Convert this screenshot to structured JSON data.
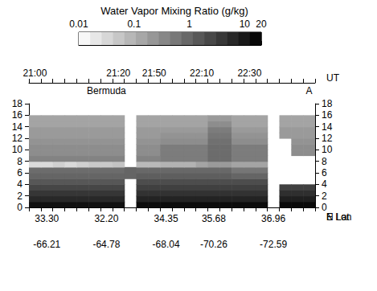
{
  "chart_data": {
    "type": "heatmap",
    "title": "Water Vapor Mixing Ratio (g/kg)",
    "top_axis": {
      "name": "UT",
      "labels": [
        "21:00",
        null,
        null,
        null,
        null,
        null,
        null,
        "21:20",
        null,
        null,
        "21:50",
        null,
        null,
        null,
        "22:10",
        null,
        null,
        null,
        "22:30",
        null,
        null,
        null,
        null,
        null
      ]
    },
    "annotations": {
      "labels": [
        null,
        null,
        null,
        null,
        null,
        null,
        "Bermuda",
        null,
        null,
        null,
        null,
        null,
        null,
        null,
        null,
        null,
        null,
        null,
        null,
        null,
        null,
        null,
        null,
        "A"
      ]
    },
    "bottom_axes": [
      {
        "name": "N Lat",
        "labels": [
          null,
          "33.30",
          null,
          null,
          null,
          null,
          "32.20",
          null,
          null,
          null,
          null,
          "34.35",
          null,
          null,
          null,
          "35.68",
          null,
          null,
          null,
          null,
          "36.96",
          null,
          null,
          null
        ]
      },
      {
        "name": "E Lon",
        "labels": [
          null,
          "-66.21",
          null,
          null,
          null,
          null,
          "-64.78",
          null,
          null,
          null,
          null,
          "-68.04",
          null,
          null,
          null,
          "-70.26",
          null,
          null,
          null,
          null,
          "-72.59",
          null,
          null,
          null
        ]
      }
    ],
    "ylim": [
      0,
      18
    ],
    "yticks": [
      0,
      2,
      4,
      6,
      8,
      10,
      12,
      14,
      16,
      18
    ],
    "y_bins": [
      0,
      1,
      2,
      3,
      4,
      5,
      6,
      7,
      8,
      9,
      10,
      11,
      12,
      13,
      14,
      15,
      16
    ],
    "cells": [
      [
        12,
        12,
        12,
        12,
        12,
        12,
        12,
        12,
        null,
        14,
        14,
        14,
        14,
        14,
        14,
        14,
        14,
        14,
        14,
        14,
        null,
        15,
        15,
        15
      ],
      [
        6,
        6,
        6,
        6,
        6,
        6,
        6,
        6,
        null,
        7,
        7,
        7,
        7,
        7,
        7,
        7,
        7,
        7,
        7,
        7,
        null,
        8,
        8,
        8
      ],
      [
        4,
        4,
        4,
        4,
        4,
        4,
        4,
        4,
        null,
        4.5,
        4.5,
        4.5,
        4.5,
        4.5,
        4.5,
        4.5,
        4.5,
        4.5,
        4.5,
        4.5,
        null,
        5,
        5,
        5
      ],
      [
        2.5,
        2.5,
        2.5,
        2.5,
        2.5,
        2.5,
        2.5,
        2.5,
        null,
        3,
        3,
        3,
        3,
        3,
        3,
        3,
        3,
        3,
        3,
        3,
        null,
        3,
        3,
        3
      ],
      [
        1.5,
        1.5,
        1.5,
        1.5,
        1.5,
        1.5,
        1.5,
        1.5,
        null,
        2,
        2,
        2,
        2,
        2,
        2,
        2,
        2,
        2,
        2,
        2,
        null,
        null,
        null,
        null
      ],
      [
        1,
        1,
        1,
        1,
        1,
        1,
        1,
        1,
        1,
        1.2,
        1.2,
        1.2,
        1.2,
        1.2,
        1.2,
        1.2,
        1.2,
        1,
        1,
        1,
        null,
        null,
        null,
        null
      ],
      [
        0.8,
        0.8,
        0.8,
        0.8,
        0.8,
        0.8,
        0.8,
        0.8,
        1,
        0.9,
        0.9,
        0.9,
        0.9,
        0.9,
        0.9,
        0.9,
        0.9,
        0.6,
        0.6,
        0.6,
        null,
        null,
        null,
        null
      ],
      [
        0.03,
        0.03,
        0.04,
        0.03,
        0.04,
        0.05,
        0.05,
        0.06,
        null,
        0.08,
        0.08,
        0.1,
        0.1,
        0.1,
        0.15,
        0.2,
        0.2,
        0.15,
        0.15,
        0.15,
        null,
        null,
        null,
        null
      ],
      [
        0.4,
        0.4,
        0.4,
        0.4,
        0.4,
        0.4,
        0.4,
        0.4,
        null,
        0.4,
        0.4,
        0.5,
        0.5,
        0.5,
        0.5,
        0.8,
        0.8,
        0.5,
        0.5,
        0.5,
        null,
        null,
        null,
        null
      ],
      [
        0.3,
        0.3,
        0.3,
        0.3,
        0.3,
        0.3,
        0.3,
        0.3,
        null,
        0.3,
        0.3,
        0.5,
        0.5,
        0.5,
        0.5,
        0.8,
        0.8,
        0.5,
        0.5,
        0.5,
        null,
        null,
        0.3,
        0.3
      ],
      [
        0.3,
        0.3,
        0.3,
        0.3,
        0.3,
        0.3,
        0.3,
        0.3,
        null,
        0.3,
        0.3,
        0.5,
        0.5,
        0.5,
        0.5,
        0.8,
        0.8,
        0.5,
        0.5,
        0.5,
        null,
        null,
        0.3,
        0.3
      ],
      [
        0.25,
        0.25,
        0.25,
        0.25,
        0.25,
        0.25,
        0.25,
        0.25,
        null,
        0.25,
        0.25,
        0.3,
        0.3,
        0.3,
        0.3,
        0.7,
        0.7,
        0.3,
        0.3,
        0.3,
        null,
        null,
        0.25,
        0.25
      ],
      [
        0.2,
        0.2,
        0.2,
        0.2,
        0.2,
        0.2,
        0.2,
        0.2,
        null,
        0.2,
        0.2,
        0.25,
        0.25,
        0.25,
        0.25,
        0.6,
        0.6,
        0.25,
        0.25,
        0.25,
        null,
        0.2,
        0.2,
        0.2
      ],
      [
        0.2,
        0.2,
        0.2,
        0.2,
        0.2,
        0.2,
        0.2,
        0.2,
        null,
        0.2,
        0.2,
        0.2,
        0.2,
        0.2,
        0.2,
        0.5,
        0.5,
        0.2,
        0.2,
        0.2,
        null,
        0.2,
        0.2,
        0.2
      ],
      [
        0.15,
        0.15,
        0.15,
        0.15,
        0.15,
        0.15,
        0.15,
        0.15,
        null,
        0.15,
        0.15,
        0.15,
        0.15,
        0.15,
        0.15,
        0.3,
        0.3,
        0.15,
        0.15,
        0.15,
        null,
        0.15,
        0.15,
        0.15
      ],
      [
        0.15,
        0.15,
        0.15,
        0.15,
        0.15,
        0.15,
        0.15,
        0.15,
        null,
        0.15,
        0.15,
        0.15,
        0.15,
        0.15,
        0.15,
        0.2,
        0.2,
        0.15,
        0.15,
        0.15,
        null,
        0.15,
        0.15,
        0.15
      ]
    ],
    "colorbar": {
      "range": [
        0.01,
        20
      ],
      "ticks": [
        0.01,
        0.1,
        1,
        10,
        20
      ],
      "log": true,
      "colors": [
        "#ffffff",
        "#000000"
      ]
    }
  }
}
